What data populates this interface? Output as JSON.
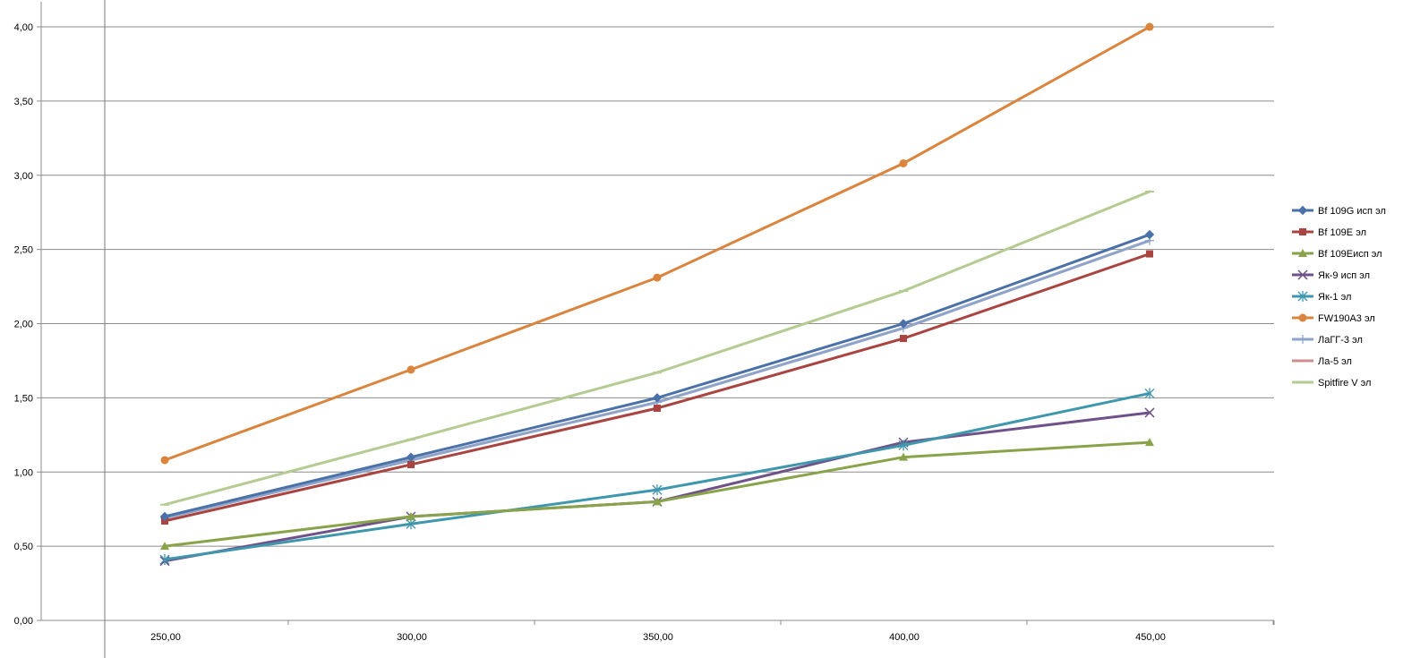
{
  "chart_data": {
    "type": "line",
    "title": "",
    "xlabel": "",
    "ylabel": "",
    "categories": [
      "250,00",
      "300,00",
      "350,00",
      "400,00",
      "450,00"
    ],
    "x": [
      250,
      300,
      350,
      400,
      450
    ],
    "ylim": [
      0,
      4
    ],
    "yticks": [
      0,
      0.5,
      1.0,
      1.5,
      2.0,
      2.5,
      3.0,
      3.5,
      4.0
    ],
    "ytick_labels": [
      "0,00",
      "0,50",
      "1,00",
      "1,50",
      "2,00",
      "2,50",
      "3,00",
      "3,50",
      "4,00"
    ],
    "grid": "horizontal",
    "legend_position": "right",
    "series": [
      {
        "name": "Bf 109G исп эл",
        "color": "#4A71A8",
        "marker": "diamond",
        "values": [
          0.7,
          1.1,
          1.5,
          2.0,
          2.6
        ]
      },
      {
        "name": "Bf 109E эл",
        "color": "#A94441",
        "marker": "square",
        "values": [
          0.67,
          1.05,
          1.43,
          1.9,
          2.47
        ]
      },
      {
        "name": "Bf 109Eисп эл",
        "color": "#88A34A",
        "marker": "triangle",
        "values": [
          0.5,
          0.7,
          0.8,
          1.1,
          1.2
        ]
      },
      {
        "name": "Як-9 исп эл",
        "color": "#6F5289",
        "marker": "x",
        "values": [
          0.4,
          0.7,
          0.8,
          1.2,
          1.4
        ]
      },
      {
        "name": "Як-1 эл",
        "color": "#3F97AD",
        "marker": "asterisk",
        "values": [
          0.41,
          0.65,
          0.88,
          1.18,
          1.53
        ]
      },
      {
        "name": "FW190A3 эл",
        "color": "#DB843D",
        "marker": "circle",
        "values": [
          1.08,
          1.69,
          2.31,
          3.08,
          4.0
        ]
      },
      {
        "name": "ЛаГГ-3 эл",
        "color": "#8EA5CB",
        "marker": "plus",
        "values": [
          0.69,
          1.08,
          1.47,
          1.97,
          2.56
        ]
      },
      {
        "name": "Ла-5 эл",
        "color": "#CE8E8D",
        "marker": "none",
        "values": [
          0.69,
          1.08,
          1.47,
          1.97,
          2.56
        ]
      },
      {
        "name": "Spitfire V эл",
        "color": "#B4CB91",
        "marker": "dash",
        "values": [
          0.78,
          1.22,
          1.67,
          2.22,
          2.89
        ]
      }
    ]
  }
}
